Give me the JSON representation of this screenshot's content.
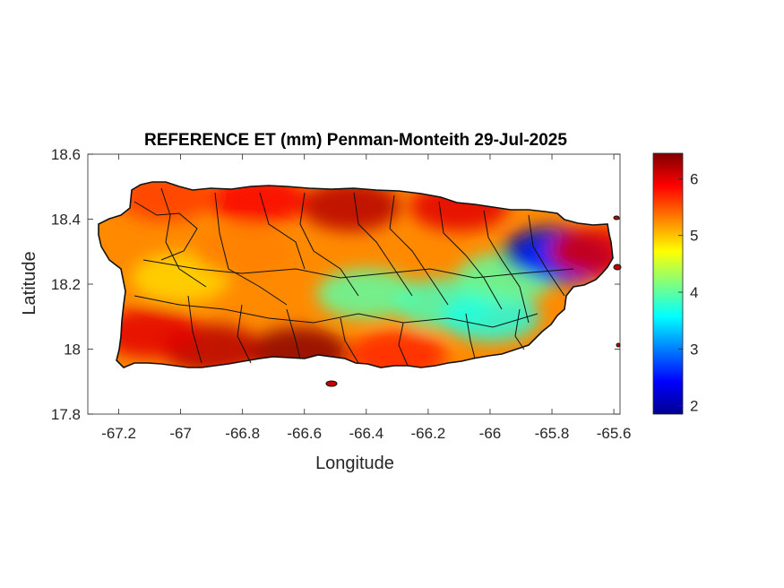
{
  "chart_data": {
    "type": "heatmap",
    "title": "REFERENCE ET (mm) Penman-Monteith 29-Jul-2025",
    "xlabel": "Longitude",
    "ylabel": "Latitude",
    "xlim": [
      -67.3,
      -65.58
    ],
    "ylim": [
      17.8,
      18.6
    ],
    "x_ticks": [
      -67.2,
      -67,
      -66.8,
      -66.6,
      -66.4,
      -66.2,
      -66,
      -65.8,
      -65.6
    ],
    "x_tick_labels": [
      "-67.2",
      "-67",
      "-66.8",
      "-66.6",
      "-66.4",
      "-66.2",
      "-66",
      "-65.8",
      "-65.6"
    ],
    "y_ticks": [
      17.8,
      18,
      18.2,
      18.4,
      18.6
    ],
    "y_tick_labels": [
      "17.8",
      "18",
      "18.2",
      "18.4",
      "18.6"
    ],
    "colorbar": {
      "colormap": "jet",
      "range": [
        1.85,
        6.45
      ],
      "ticks": [
        2,
        3,
        4,
        5,
        6
      ],
      "tick_labels": [
        "2",
        "3",
        "4",
        "5",
        "6"
      ]
    },
    "grid": false,
    "value_zones": [
      {
        "lon": -66.62,
        "lat": 17.99,
        "value": 6.4
      },
      {
        "lon": -66.9,
        "lat": 18.0,
        "value": 6.2
      },
      {
        "lon": -67.1,
        "lat": 18.05,
        "value": 6.0
      },
      {
        "lon": -66.3,
        "lat": 17.98,
        "value": 5.7
      },
      {
        "lon": -66.45,
        "lat": 18.44,
        "value": 6.2
      },
      {
        "lon": -66.1,
        "lat": 18.44,
        "value": 6.0
      },
      {
        "lon": -66.75,
        "lat": 18.46,
        "value": 5.9
      },
      {
        "lon": -67.05,
        "lat": 18.47,
        "value": 5.6
      },
      {
        "lon": -66.4,
        "lat": 18.17,
        "value": 4.0
      },
      {
        "lon": -66.15,
        "lat": 18.14,
        "value": 3.9
      },
      {
        "lon": -66.0,
        "lat": 18.1,
        "value": 3.7
      },
      {
        "lon": -65.95,
        "lat": 18.22,
        "value": 4.0
      },
      {
        "lon": -65.8,
        "lat": 18.3,
        "value": 2.0
      },
      {
        "lon": -65.75,
        "lat": 18.28,
        "value": 2.6
      },
      {
        "lon": -67.0,
        "lat": 18.22,
        "value": 4.9
      },
      {
        "lon": -66.8,
        "lat": 18.3,
        "value": 5.3
      },
      {
        "lon": -65.65,
        "lat": 18.3,
        "value": 6.0
      }
    ]
  }
}
